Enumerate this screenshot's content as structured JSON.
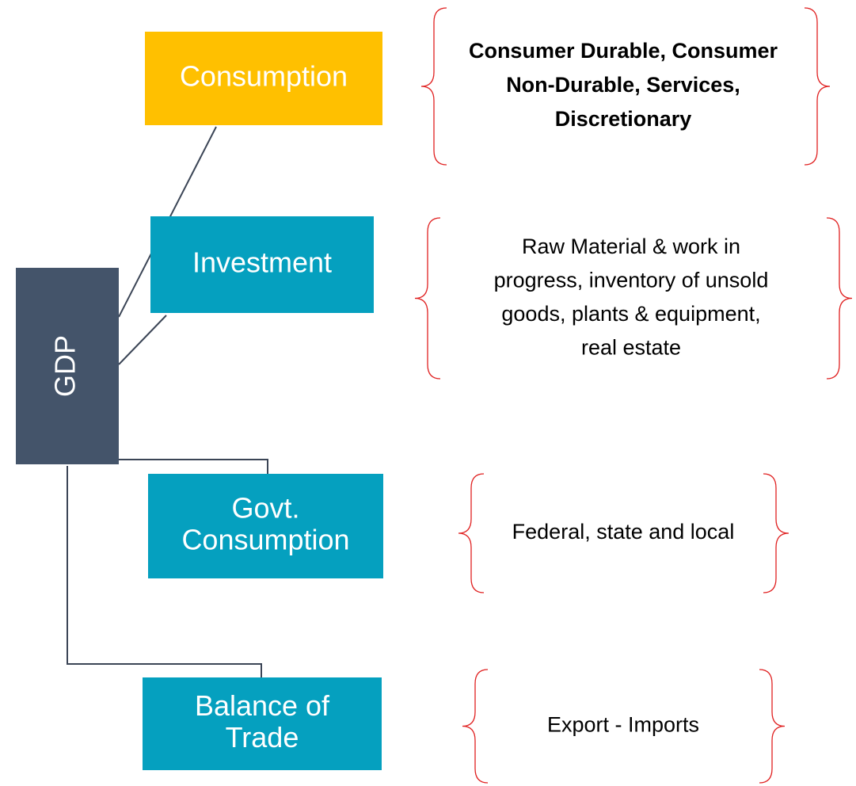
{
  "root": {
    "label": "GDP"
  },
  "nodes": [
    {
      "label": [
        "Consumption"
      ],
      "description": [
        "Consumer Durable, Consumer",
        "Non-Durable, Services,",
        "Discretionary"
      ]
    },
    {
      "label": [
        "Investment"
      ],
      "description": [
        "Raw Material & work in",
        "progress, inventory of unsold",
        "goods, plants & equipment,",
        "real estate"
      ]
    },
    {
      "label": [
        "Govt.",
        "Consumption"
      ],
      "description": [
        "Federal, state and local"
      ]
    },
    {
      "label": [
        "Balance of",
        "Trade"
      ],
      "description": [
        "Export - Imports"
      ]
    }
  ]
}
